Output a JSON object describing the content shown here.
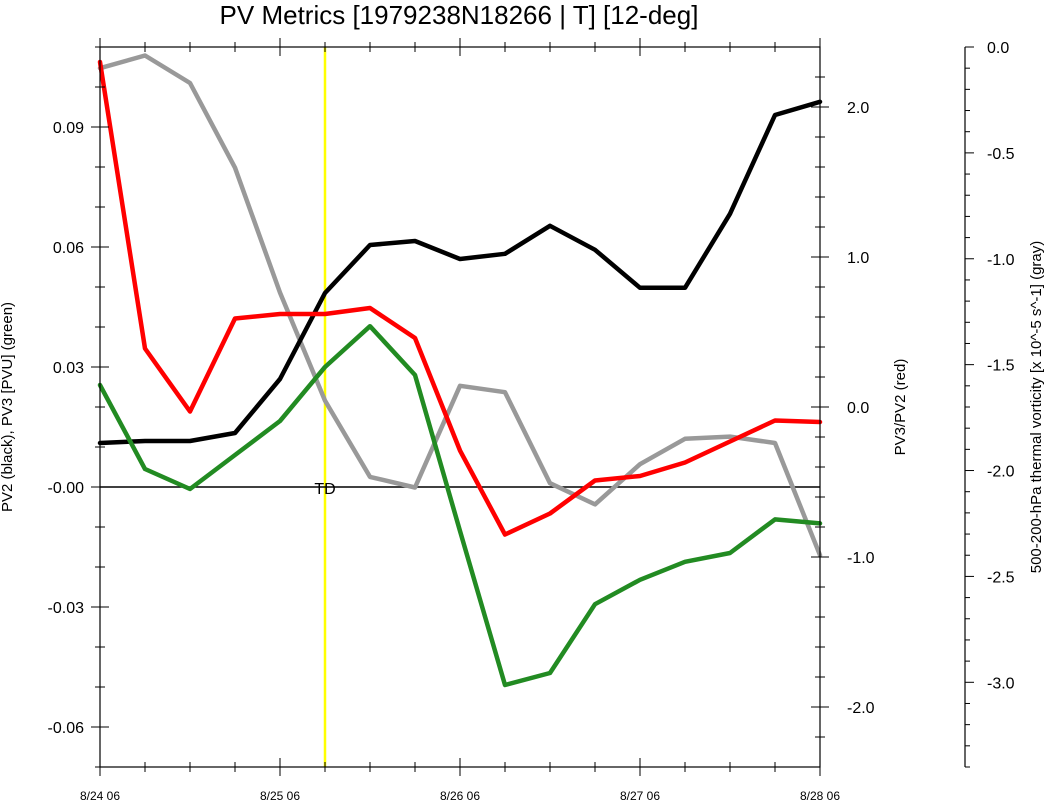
{
  "chart_data": {
    "type": "line",
    "title": "PV Metrics [1979238N18266 | T] [12-deg]",
    "x_ticks": [
      "8/24 06",
      "8/25 06",
      "8/26 06",
      "8/27 06",
      "8/28 06"
    ],
    "x_range": [
      0,
      96
    ],
    "x_hours": [
      0,
      6,
      12,
      18,
      24,
      30,
      36,
      42,
      48,
      54,
      60,
      66,
      72,
      78,
      84,
      90,
      96
    ],
    "left_axis": {
      "label": "PV2 (black), PV3 [PVU] (green)",
      "range": [
        -0.07,
        0.11
      ],
      "ticks": [
        0.09,
        0.06,
        0.03,
        -0.0,
        -0.03,
        -0.06
      ],
      "tick_labels": [
        "0.09",
        "0.06",
        "0.03",
        "-0.00",
        "-0.03",
        "-0.06"
      ]
    },
    "right_axis": {
      "label": "PV3/PV2 (red)",
      "range": [
        -2.4,
        2.4
      ],
      "ticks": [
        2.0,
        1.0,
        0.0,
        -1.0,
        -2.0
      ],
      "tick_labels": [
        "2.0",
        "1.0",
        "0.0",
        "-1.0",
        "-2.0"
      ]
    },
    "far_axis": {
      "label": "500-200-hPa thermal vorticity [x 10^-5 s^-1] (gray)",
      "range": [
        -3.4,
        0.0
      ],
      "ticks": [
        0.0,
        -0.5,
        -1.0,
        -1.5,
        -2.0,
        -2.5,
        -3.0
      ],
      "tick_labels": [
        "0.0",
        "-0.5",
        "-1.0",
        "-1.5",
        "-2.0",
        "-2.5",
        "-3.0"
      ]
    },
    "vline": {
      "hour": 30,
      "color": "#ffff00",
      "label": "TD"
    },
    "series": [
      {
        "axis": "left",
        "color": "#000000",
        "values": [
          0.011,
          0.0115,
          0.0115,
          0.0135,
          0.027,
          0.0485,
          0.0605,
          0.0615,
          0.057,
          0.0583,
          0.0653,
          0.0593,
          0.0498,
          0.0498,
          0.0683,
          0.093,
          0.0963
        ]
      },
      {
        "axis": "left",
        "color": "#228b22",
        "values": [
          0.0255,
          0.0045,
          -0.0005,
          0.008,
          0.0165,
          0.03,
          0.0402,
          0.028,
          -0.011,
          -0.0495,
          -0.0465,
          -0.0293,
          -0.0232,
          -0.0187,
          -0.0165,
          -0.0081,
          -0.0091
        ]
      },
      {
        "axis": "right",
        "color": "#ff0000",
        "values": [
          2.3,
          0.39,
          -0.03,
          0.59,
          0.62,
          0.62,
          0.66,
          0.46,
          -0.29,
          -0.85,
          -0.71,
          -0.49,
          -0.46,
          -0.37,
          -0.23,
          -0.09,
          -0.1
        ]
      },
      {
        "axis": "far",
        "color": "#999999",
        "values": [
          -0.1,
          -0.04,
          -0.17,
          -0.57,
          -1.16,
          -1.67,
          -2.03,
          -2.08,
          -1.6,
          -1.63,
          -2.06,
          -2.16,
          -1.97,
          -1.85,
          -1.84,
          -1.87,
          -2.4
        ]
      }
    ]
  }
}
